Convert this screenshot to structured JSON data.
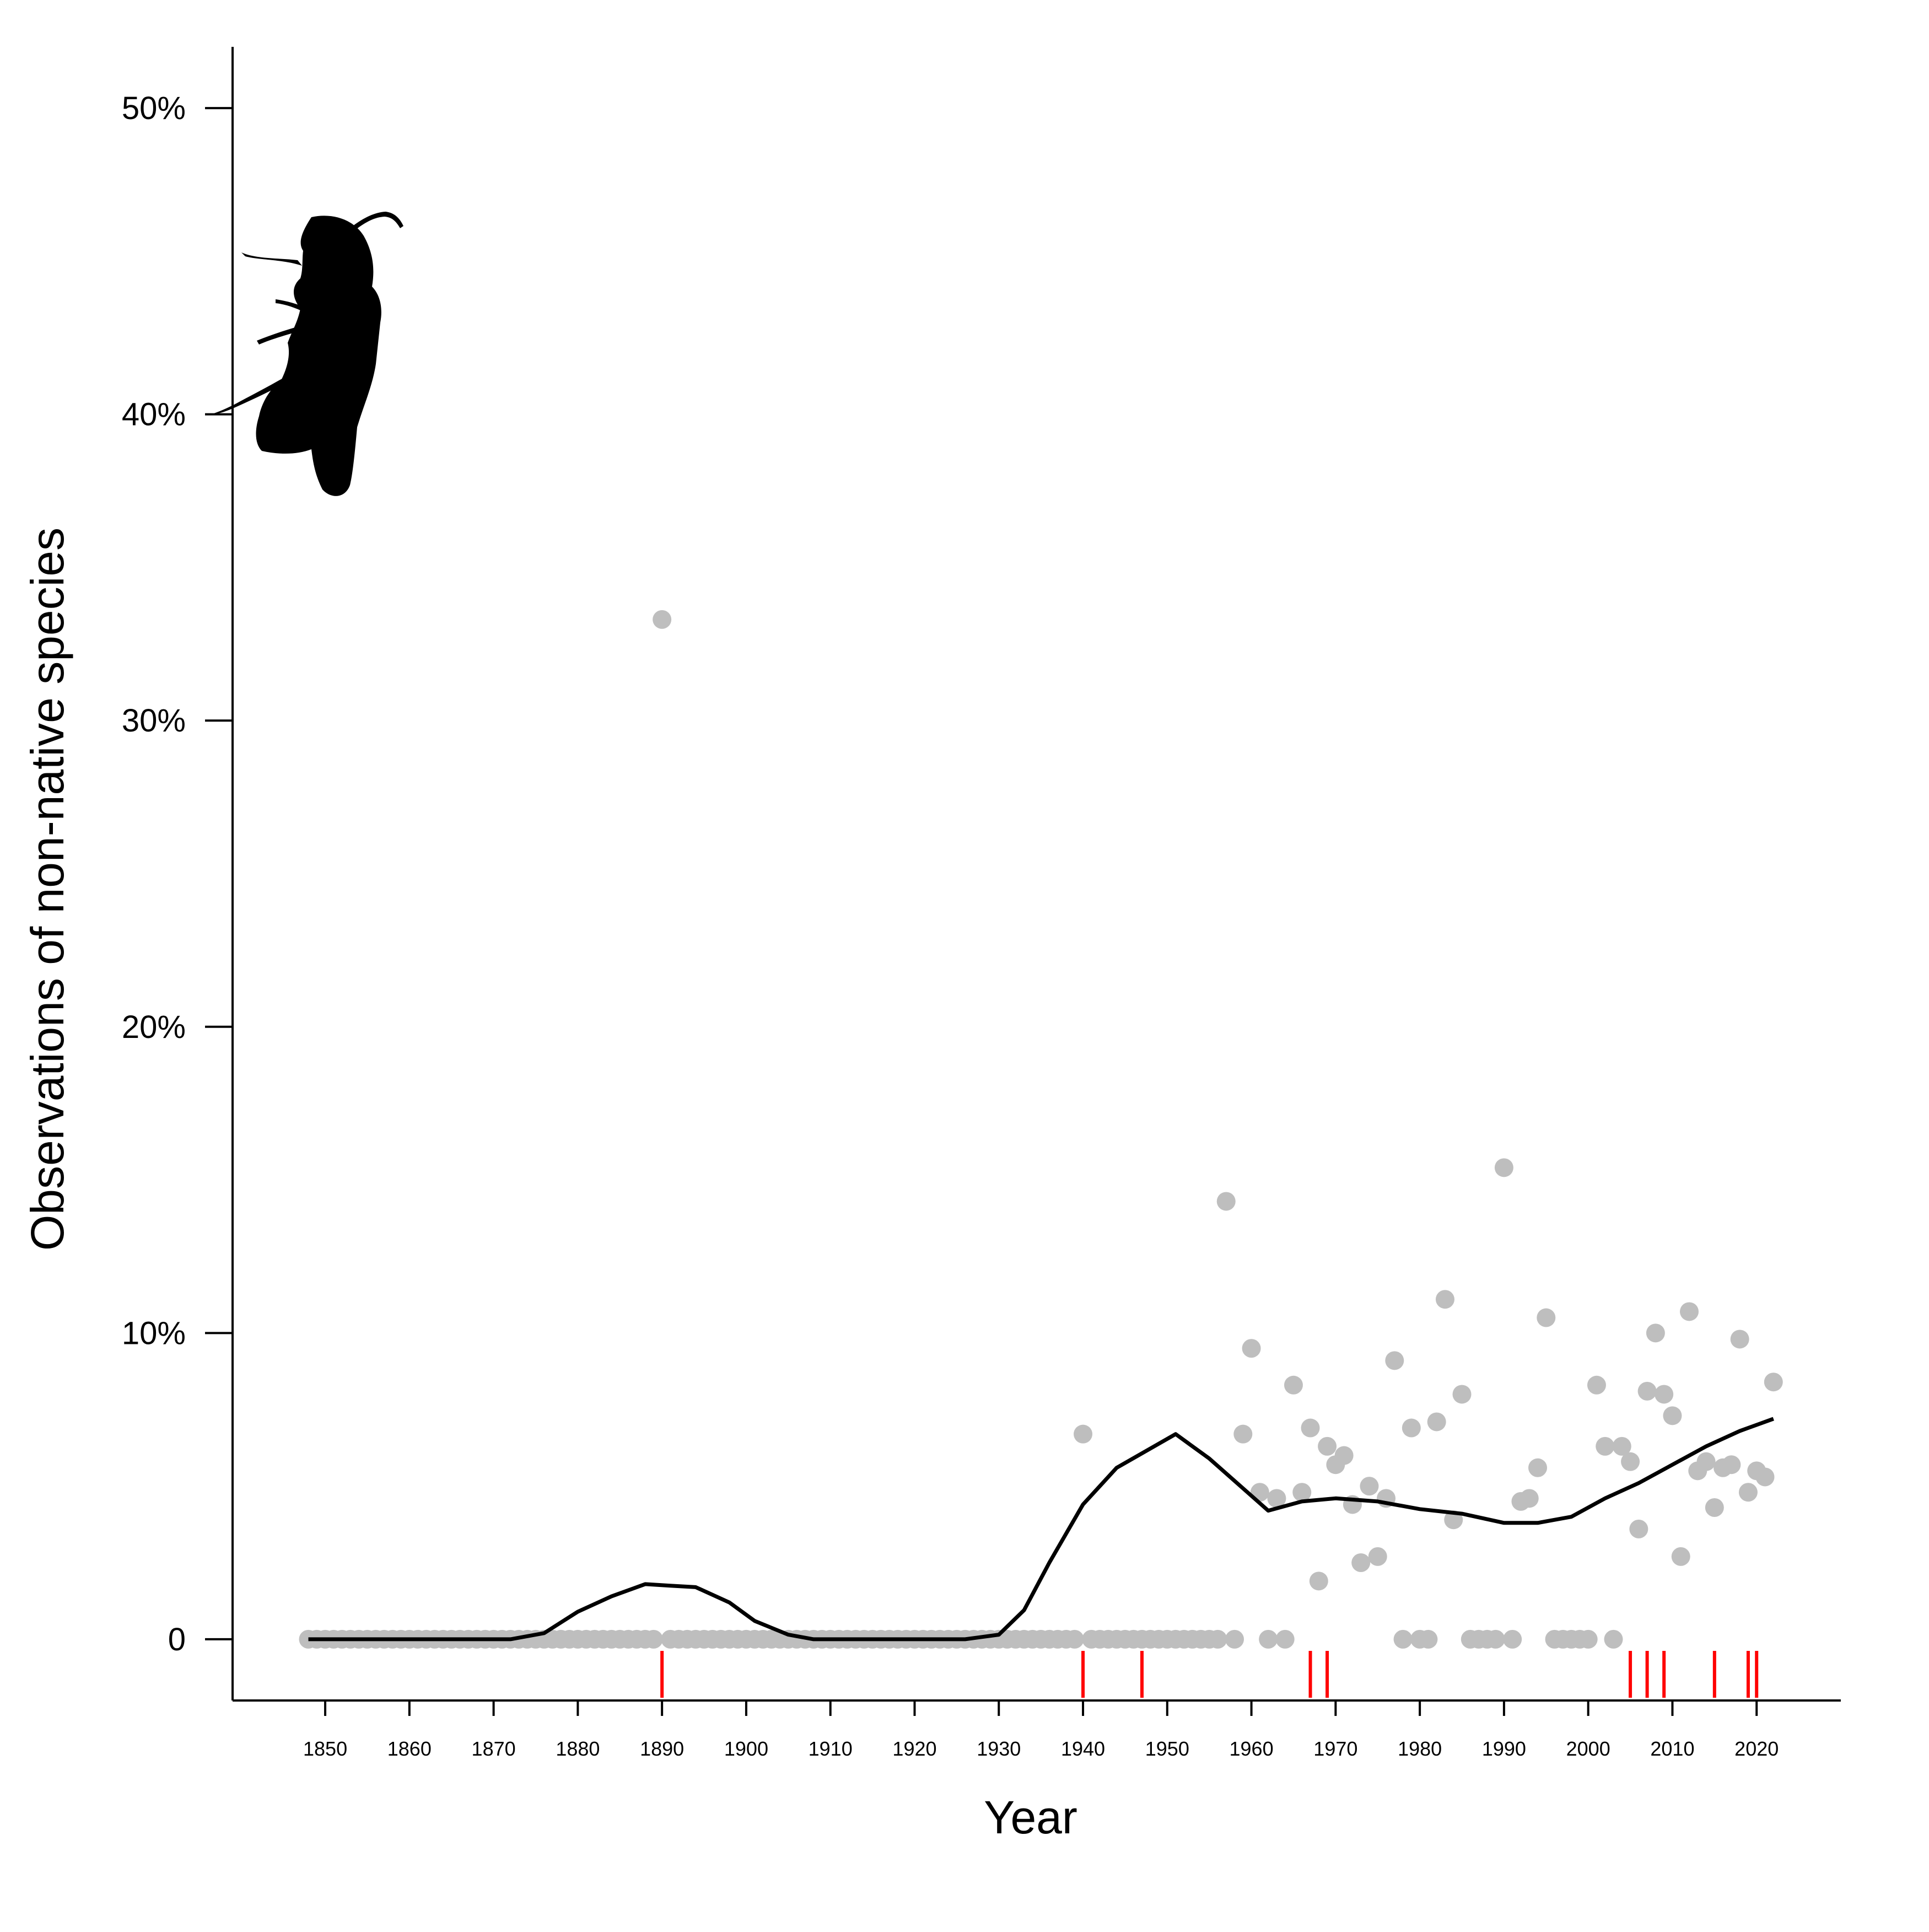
{
  "chart_data": {
    "type": "scatter",
    "xlabel": "Year",
    "ylabel": "Observations of non-native species",
    "xlim": [
      1839,
      2030
    ],
    "ylim": [
      -2,
      52
    ],
    "xticks": [
      1850,
      1860,
      1870,
      1880,
      1890,
      1900,
      1910,
      1920,
      1930,
      1940,
      1950,
      1960,
      1970,
      1980,
      1990,
      2000,
      2010,
      2020
    ],
    "yticks": [
      {
        "value": 0,
        "label": "0"
      },
      {
        "value": 10,
        "label": "10%"
      },
      {
        "value": 20,
        "label": "20%"
      },
      {
        "value": 30,
        "label": "30%"
      },
      {
        "value": 40,
        "label": "40%"
      },
      {
        "value": 50,
        "label": "50%"
      }
    ],
    "grid": false,
    "legend": "none",
    "colors": {
      "points": "#bebebe",
      "trend": "#000000",
      "rug": "#ff0000",
      "axis": "#000000"
    },
    "icon": "wasp-silhouette-icon",
    "series": [
      {
        "type": "scatter",
        "points": [
          [
            1848,
            0
          ],
          [
            1849,
            0
          ],
          [
            1850,
            0
          ],
          [
            1851,
            0
          ],
          [
            1852,
            0
          ],
          [
            1853,
            0
          ],
          [
            1854,
            0
          ],
          [
            1855,
            0
          ],
          [
            1856,
            0
          ],
          [
            1857,
            0
          ],
          [
            1858,
            0
          ],
          [
            1859,
            0
          ],
          [
            1860,
            0
          ],
          [
            1861,
            0
          ],
          [
            1862,
            0
          ],
          [
            1863,
            0
          ],
          [
            1864,
            0
          ],
          [
            1865,
            0
          ],
          [
            1866,
            0
          ],
          [
            1867,
            0
          ],
          [
            1868,
            0
          ],
          [
            1869,
            0
          ],
          [
            1870,
            0
          ],
          [
            1871,
            0
          ],
          [
            1872,
            0
          ],
          [
            1873,
            0
          ],
          [
            1874,
            0
          ],
          [
            1875,
            0
          ],
          [
            1876,
            0
          ],
          [
            1877,
            0
          ],
          [
            1878,
            0
          ],
          [
            1879,
            0
          ],
          [
            1880,
            0
          ],
          [
            1881,
            0
          ],
          [
            1882,
            0
          ],
          [
            1883,
            0
          ],
          [
            1884,
            0
          ],
          [
            1885,
            0
          ],
          [
            1886,
            0
          ],
          [
            1887,
            0
          ],
          [
            1888,
            0
          ],
          [
            1889,
            0
          ],
          [
            1890,
            33.3
          ],
          [
            1891,
            0
          ],
          [
            1892,
            0
          ],
          [
            1893,
            0
          ],
          [
            1894,
            0
          ],
          [
            1895,
            0
          ],
          [
            1896,
            0
          ],
          [
            1897,
            0
          ],
          [
            1898,
            0
          ],
          [
            1899,
            0
          ],
          [
            1900,
            0
          ],
          [
            1901,
            0
          ],
          [
            1902,
            0
          ],
          [
            1903,
            0
          ],
          [
            1904,
            0
          ],
          [
            1905,
            0
          ],
          [
            1906,
            0
          ],
          [
            1907,
            0
          ],
          [
            1908,
            0
          ],
          [
            1909,
            0
          ],
          [
            1910,
            0
          ],
          [
            1911,
            0
          ],
          [
            1912,
            0
          ],
          [
            1913,
            0
          ],
          [
            1914,
            0
          ],
          [
            1915,
            0
          ],
          [
            1916,
            0
          ],
          [
            1917,
            0
          ],
          [
            1918,
            0
          ],
          [
            1919,
            0
          ],
          [
            1920,
            0
          ],
          [
            1921,
            0
          ],
          [
            1922,
            0
          ],
          [
            1923,
            0
          ],
          [
            1924,
            0
          ],
          [
            1925,
            0
          ],
          [
            1926,
            0
          ],
          [
            1927,
            0
          ],
          [
            1928,
            0
          ],
          [
            1929,
            0
          ],
          [
            1930,
            0
          ],
          [
            1931,
            0
          ],
          [
            1932,
            0
          ],
          [
            1933,
            0
          ],
          [
            1934,
            0
          ],
          [
            1935,
            0
          ],
          [
            1936,
            0
          ],
          [
            1937,
            0
          ],
          [
            1938,
            0
          ],
          [
            1939,
            0
          ],
          [
            1940,
            6.7
          ],
          [
            1941,
            0
          ],
          [
            1942,
            0
          ],
          [
            1943,
            0
          ],
          [
            1944,
            0
          ],
          [
            1945,
            0
          ],
          [
            1946,
            0
          ],
          [
            1947,
            0
          ],
          [
            1948,
            0
          ],
          [
            1949,
            0
          ],
          [
            1950,
            0
          ],
          [
            1951,
            0
          ],
          [
            1952,
            0
          ],
          [
            1953,
            0
          ],
          [
            1954,
            0
          ],
          [
            1955,
            0
          ],
          [
            1956,
            0
          ],
          [
            1957,
            14.3
          ],
          [
            1958,
            0
          ],
          [
            1959,
            6.7
          ],
          [
            1960,
            9.5
          ],
          [
            1961,
            4.8
          ],
          [
            1962,
            0
          ],
          [
            1963,
            4.6
          ],
          [
            1964,
            0
          ],
          [
            1965,
            8.3
          ],
          [
            1966,
            4.8
          ],
          [
            1967,
            6.9
          ],
          [
            1968,
            1.9
          ],
          [
            1969,
            6.3
          ],
          [
            1970,
            5.7
          ],
          [
            1971,
            6.0
          ],
          [
            1972,
            4.4
          ],
          [
            1973,
            2.5
          ],
          [
            1974,
            5.0
          ],
          [
            1975,
            2.7
          ],
          [
            1976,
            4.6
          ],
          [
            1977,
            9.1
          ],
          [
            1978,
            0
          ],
          [
            1979,
            6.9
          ],
          [
            1980,
            0
          ],
          [
            1981,
            0
          ],
          [
            1982,
            7.1
          ],
          [
            1983,
            11.1
          ],
          [
            1984,
            3.9
          ],
          [
            1985,
            8.0
          ],
          [
            1986,
            0
          ],
          [
            1987,
            0
          ],
          [
            1988,
            0
          ],
          [
            1989,
            0
          ],
          [
            1990,
            15.4
          ],
          [
            1991,
            0
          ],
          [
            1992,
            4.5
          ],
          [
            1993,
            4.6
          ],
          [
            1994,
            5.6
          ],
          [
            1995,
            10.5
          ],
          [
            1996,
            0
          ],
          [
            1997,
            0
          ],
          [
            1998,
            0
          ],
          [
            1999,
            0
          ],
          [
            2000,
            0
          ],
          [
            2001,
            8.3
          ],
          [
            2002,
            6.3
          ],
          [
            2003,
            0
          ],
          [
            2004,
            6.3
          ],
          [
            2005,
            5.8
          ],
          [
            2006,
            3.6
          ],
          [
            2007,
            8.1
          ],
          [
            2008,
            10.0
          ],
          [
            2009,
            8.0
          ],
          [
            2010,
            7.3
          ],
          [
            2011,
            2.7
          ],
          [
            2012,
            10.7
          ],
          [
            2013,
            5.5
          ],
          [
            2014,
            5.8
          ],
          [
            2015,
            4.3
          ],
          [
            2016,
            5.6
          ],
          [
            2017,
            5.7
          ],
          [
            2018,
            9.8
          ],
          [
            2019,
            4.8
          ],
          [
            2020,
            5.5
          ],
          [
            2021,
            5.3
          ],
          [
            2022,
            8.4
          ]
        ]
      },
      {
        "type": "line",
        "points": [
          [
            1848,
            0
          ],
          [
            1872,
            0
          ],
          [
            1876,
            0.2
          ],
          [
            1880,
            0.9
          ],
          [
            1884,
            1.4
          ],
          [
            1888,
            1.8
          ],
          [
            1891,
            1.75
          ],
          [
            1894,
            1.7
          ],
          [
            1898,
            1.2
          ],
          [
            1901,
            0.6
          ],
          [
            1905,
            0.15
          ],
          [
            1908,
            0
          ],
          [
            1926,
            0
          ],
          [
            1930,
            0.15
          ],
          [
            1933,
            0.95
          ],
          [
            1936,
            2.5
          ],
          [
            1940,
            4.4
          ],
          [
            1944,
            5.6
          ],
          [
            1951,
            6.7
          ],
          [
            1955,
            5.9
          ],
          [
            1962,
            4.2
          ],
          [
            1966,
            4.5
          ],
          [
            1970,
            4.6
          ],
          [
            1975,
            4.5
          ],
          [
            1980,
            4.25
          ],
          [
            1985,
            4.1
          ],
          [
            1990,
            3.8
          ],
          [
            1994,
            3.8
          ],
          [
            1998,
            4.0
          ],
          [
            2002,
            4.6
          ],
          [
            2006,
            5.1
          ],
          [
            2010,
            5.7
          ],
          [
            2014,
            6.3
          ],
          [
            2018,
            6.8
          ],
          [
            2022,
            7.2
          ]
        ]
      },
      {
        "type": "rug",
        "x": [
          1890,
          1940,
          1947,
          1967,
          1969,
          2005,
          2007,
          2009,
          2015,
          2019,
          2020
        ]
      }
    ]
  }
}
